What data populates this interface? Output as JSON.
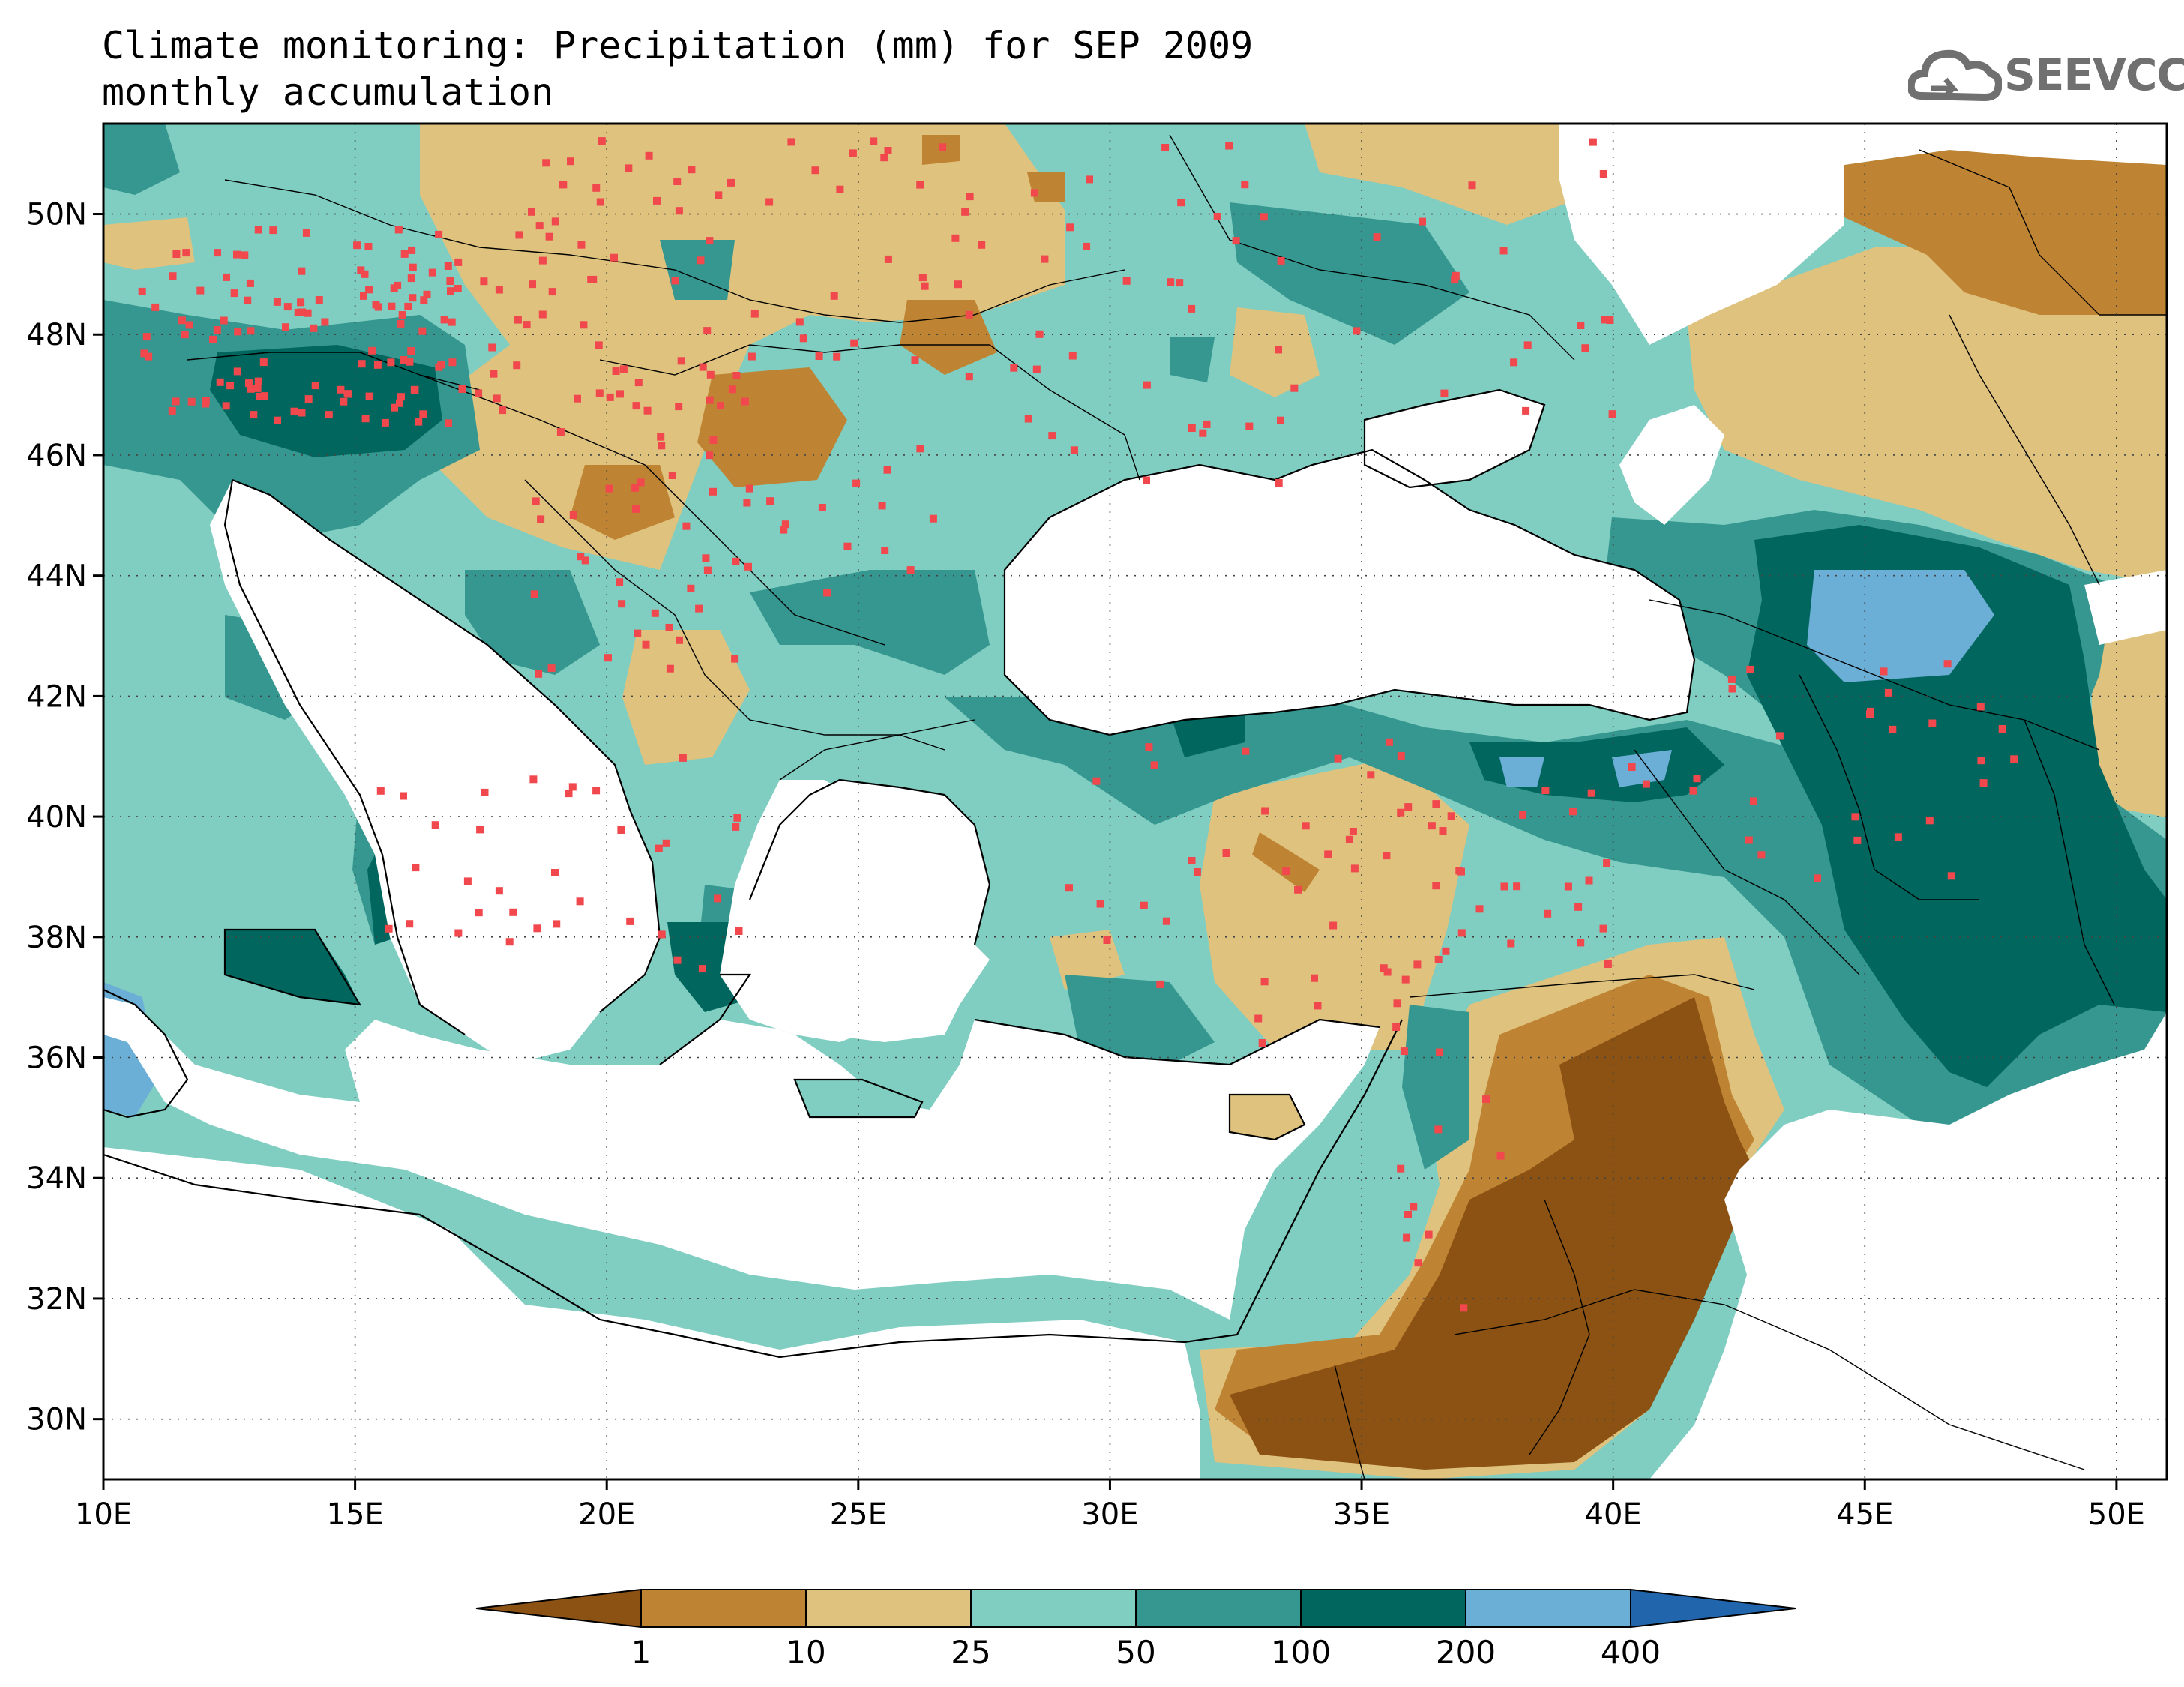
{
  "title": {
    "line1": "Climate monitoring: Precipitation (mm) for SEP 2009",
    "line2": "monthly accumulation"
  },
  "logo": {
    "text": "SEEVCCC",
    "icon": "cloud-icon"
  },
  "axes": {
    "lat_labels": [
      "50N",
      "48N",
      "46N",
      "44N",
      "42N",
      "40N",
      "38N",
      "36N",
      "34N",
      "32N",
      "30N"
    ],
    "lat_values": [
      50,
      48,
      46,
      44,
      42,
      40,
      38,
      36,
      34,
      32,
      30
    ],
    "lon_labels": [
      "10E",
      "15E",
      "20E",
      "25E",
      "30E",
      "35E",
      "40E",
      "45E",
      "50E"
    ],
    "lon_values": [
      10,
      15,
      20,
      25,
      30,
      35,
      40,
      45,
      50
    ],
    "lon_range": [
      10,
      51
    ],
    "lat_range": [
      29,
      51.5
    ],
    "grid": "dotted"
  },
  "colorbar": {
    "labels": [
      "1",
      "10",
      "25",
      "50",
      "100",
      "200",
      "400"
    ],
    "colors": [
      "#8B5213",
      "#BF8433",
      "#DFC27E",
      "#80CDC1",
      "#35978F",
      "#01665E",
      "#6BAED6",
      "#2166AC"
    ],
    "placement": "bottom"
  },
  "colors": {
    "station_marker": "#F0484C",
    "coastline": "#000000",
    "land_nodata": "#FFFFFF"
  }
}
